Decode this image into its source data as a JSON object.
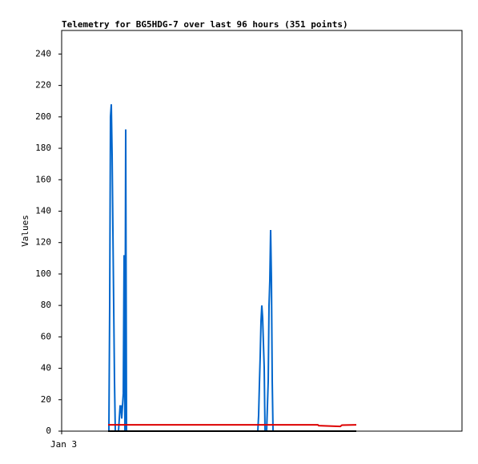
{
  "chart_data": {
    "type": "line",
    "title": "Telemetry for BG5HDG-7 over last 96 hours (351 points)",
    "y_label": "Values",
    "xlim": [
      0,
      100
    ],
    "xticks": [
      {
        "value": 0,
        "label": "Jan 3"
      }
    ],
    "ylim": [
      0,
      255
    ],
    "yticks": [
      0,
      20,
      40,
      60,
      80,
      100,
      120,
      140,
      160,
      180,
      200,
      220,
      240
    ],
    "series": [
      {
        "color": "#0066cc",
        "x": [
          11.6,
          11.8,
          12,
          12.2,
          12.4,
          12.6,
          12.8,
          13,
          13.2,
          13.4,
          14.2,
          14.6,
          14.8,
          15,
          15.2,
          15.4,
          15.6,
          15.8,
          16,
          16.2,
          49,
          49.2,
          49.4,
          49.6,
          49.8,
          50,
          50.2,
          50.4,
          50.6,
          50.8,
          51.2,
          51.6,
          51.8,
          52,
          52.2,
          52.4,
          52.6,
          52.8
        ],
        "values": [
          0,
          0,
          80,
          200,
          208,
          176,
          128,
          80,
          32,
          0,
          0,
          16,
          16,
          8,
          16,
          24,
          112,
          0,
          192,
          0,
          0,
          10,
          30,
          48,
          70,
          80,
          72,
          56,
          40,
          0,
          0,
          32,
          80,
          96,
          128,
          96,
          32,
          0
        ]
      },
      {
        "color": "#dd0000",
        "x": [
          11.6,
          64,
          64.2,
          69.6,
          70,
          73.6
        ],
        "values": [
          4,
          4,
          3.5,
          3,
          3.8,
          4
        ]
      },
      {
        "color": "#000000",
        "x": [
          11.6,
          73.6
        ],
        "values": [
          0,
          0
        ]
      }
    ]
  }
}
